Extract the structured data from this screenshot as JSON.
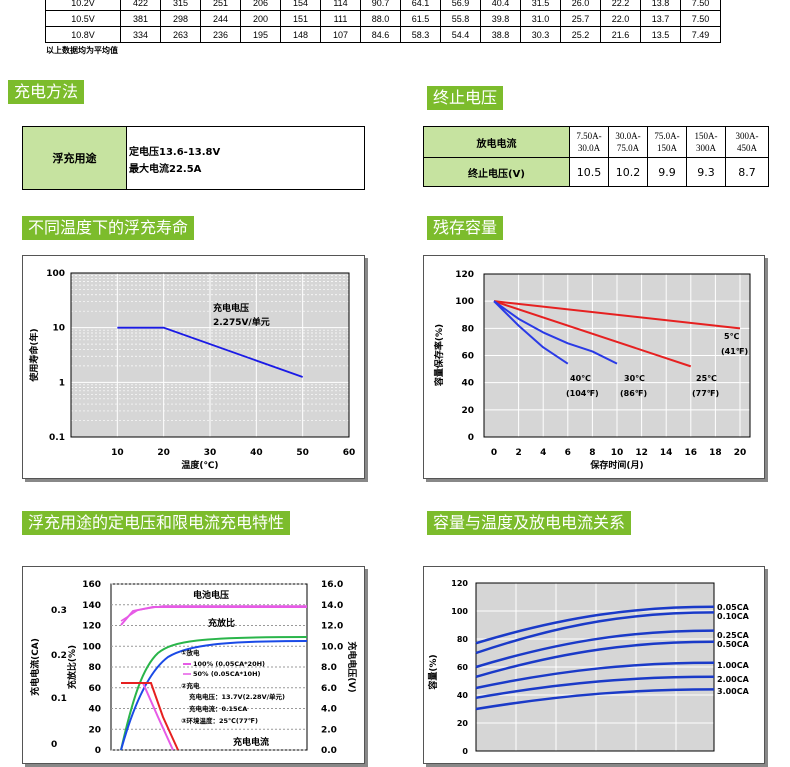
{
  "top_table": {
    "rows": [
      [
        "10.2V",
        "422",
        "315",
        "251",
        "206",
        "154",
        "114",
        "90.7",
        "64.1",
        "56.9",
        "40.4",
        "31.5",
        "26.0",
        "22.2",
        "13.8",
        "7.50"
      ],
      [
        "10.5V",
        "381",
        "298",
        "244",
        "200",
        "151",
        "111",
        "88.0",
        "61.5",
        "55.8",
        "39.8",
        "31.0",
        "25.7",
        "22.0",
        "13.7",
        "7.50"
      ],
      [
        "10.8V",
        "334",
        "263",
        "236",
        "195",
        "148",
        "107",
        "84.6",
        "58.3",
        "54.4",
        "38.8",
        "30.3",
        "25.2",
        "21.6",
        "13.5",
        "7.49"
      ]
    ],
    "note": "以上数据均为平均值"
  },
  "charging": {
    "title": "充电方法",
    "label": "浮充用途",
    "line1": "定电压13.6-13.8V",
    "line2": "最大电流22.5A"
  },
  "cutoff": {
    "title": "终止电压",
    "row1_label": "放电电流",
    "row2_label": "终止电压(V)",
    "currents": [
      "7.50A-30.0A",
      "30.0A-75.0A",
      "75.0A-150A",
      "150A-300A",
      "300A-450A"
    ],
    "voltages": [
      "10.5",
      "10.2",
      "9.9",
      "9.3",
      "8.7"
    ]
  },
  "float_life": {
    "title": "不同温度下的浮充寿命",
    "annotation1": "充电电压",
    "annotation2": "2.275V/单元",
    "chart_data": {
      "type": "line",
      "xlabel": "温度(℃)",
      "ylabel": "使用寿命(年)",
      "x_ticks": [
        "10",
        "20",
        "30",
        "40",
        "50",
        "60"
      ],
      "y_ticks": [
        "100",
        "10",
        "1",
        "0.1"
      ],
      "xlim": [
        0,
        60
      ],
      "ylim": [
        0.1,
        100
      ],
      "y_scale": "log",
      "series": [
        {
          "x": [
            10,
            20,
            50
          ],
          "y": [
            10,
            10,
            1.25
          ],
          "color": "#1a1ae6"
        }
      ]
    }
  },
  "residual": {
    "title": "残存容量",
    "chart_data": {
      "type": "line",
      "xlabel": "保存时间(月)",
      "ylabel": "容量保存率(%)",
      "x_ticks": [
        "0",
        "2",
        "4",
        "6",
        "8",
        "10",
        "12",
        "14",
        "16",
        "18",
        "20"
      ],
      "y_ticks": [
        "120",
        "100",
        "80",
        "60",
        "40",
        "20",
        "0"
      ],
      "xlim": [
        0,
        20
      ],
      "ylim": [
        0,
        120
      ],
      "series": [
        {
          "name": "5℃",
          "label2": "(41℉)",
          "color": "#e62020",
          "x": [
            0,
            20
          ],
          "y": [
            100,
            80
          ]
        },
        {
          "name": "25℃",
          "label2": "(77℉)",
          "color": "#e62020",
          "x": [
            0,
            16
          ],
          "y": [
            100,
            52
          ]
        },
        {
          "name": "30℃",
          "label2": "(86℉)",
          "color": "#2a3ae6",
          "x": [
            0,
            2,
            4,
            6,
            8,
            10
          ],
          "y": [
            100,
            87,
            77,
            69,
            63,
            54
          ]
        },
        {
          "name": "40℃",
          "label2": "(104℉)",
          "color": "#2a3ae6",
          "x": [
            0,
            2,
            4,
            6
          ],
          "y": [
            100,
            82,
            66,
            54
          ]
        }
      ]
    }
  },
  "float_char": {
    "title": "浮充用途的定电压和限电流充电特性",
    "left_axis1_label": "充电电流(CA)",
    "left_axis1_ticks": [
      "0.3",
      "0.2",
      "0.1",
      "0"
    ],
    "left_axis2_label": "充放比(%)",
    "left_axis2_ticks": [
      "160",
      "140",
      "120",
      "100",
      "80",
      "60",
      "40",
      "20",
      "0"
    ],
    "right_axis_label": "充电电压(V)",
    "right_axis_ticks": [
      "16.0",
      "14.0",
      "12.0",
      "10.0",
      "8.0",
      "6.0",
      "4.0",
      "2.0",
      "0.0"
    ],
    "label_voltage": "电池电压",
    "label_ratio": "充放比",
    "label_current": "充电电流",
    "legend": {
      "discharge": "①放电",
      "d100": "100% (0.05CA*20H)",
      "d50": "50% (0.05CA*10H)",
      "charge": "②充电",
      "cv": "充电电压：13.7V(2.28V/单元)",
      "cc": "充电电流：0.15CA",
      "temp": "③环境温度：25℃(77℉)"
    },
    "colors": {
      "voltage": "#e65ae6",
      "ratio": "#2ab54a",
      "current": "#e62020",
      "blue": "#1a4ae6"
    }
  },
  "cap_temp": {
    "title": "容量与温度及放电电流关系",
    "chart_data": {
      "type": "line",
      "ylabel": "容量(%)",
      "y_ticks": [
        "120",
        "100",
        "80",
        "60",
        "40",
        "20",
        "0"
      ],
      "ylim": [
        0,
        120
      ],
      "series": [
        {
          "name": "0.05CA",
          "y_start": 77,
          "y_end": 103
        },
        {
          "name": "0.10CA",
          "y_start": 70,
          "y_end": 99
        },
        {
          "name": "0.25CA",
          "y_start": 60,
          "y_end": 86
        },
        {
          "name": "0.50CA",
          "y_start": 53,
          "y_end": 78
        },
        {
          "name": "1.00CA",
          "y_start": 45,
          "y_end": 63
        },
        {
          "name": "2.00CA",
          "y_start": 38,
          "y_end": 53
        },
        {
          "name": "3.00CA",
          "y_start": 30,
          "y_end": 44
        }
      ],
      "color": "#1a3ac8"
    }
  }
}
